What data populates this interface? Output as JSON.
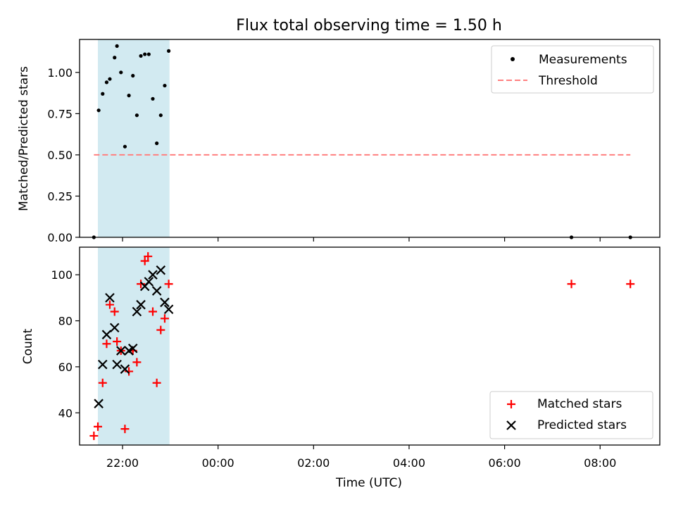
{
  "chart_data": [
    {
      "type": "scatter",
      "title": "Flux total observing time = 1.50 h",
      "xlabel": "",
      "ylabel": "Matched/Predicted stars",
      "xlim": [
        "21:06",
        "09:15"
      ],
      "ylim": [
        0,
        1.2
      ],
      "yticks": [
        0.0,
        0.25,
        0.5,
        0.75,
        1.0
      ],
      "ytick_labels": [
        "0.00",
        "0.25",
        "0.50",
        "0.75",
        "1.00"
      ],
      "grid": false,
      "legend": "top-right",
      "shaded_span": [
        "21:29",
        "22:59"
      ],
      "series": [
        {
          "name": "Measurements",
          "marker": "dot",
          "color": "#000000",
          "points": [
            [
              "21:24",
              0.0
            ],
            [
              "21:30",
              0.77
            ],
            [
              "21:35",
              0.87
            ],
            [
              "21:40",
              0.94
            ],
            [
              "21:44",
              0.96
            ],
            [
              "21:50",
              1.09
            ],
            [
              "21:53",
              1.16
            ],
            [
              "21:58",
              1.0
            ],
            [
              "22:03",
              0.55
            ],
            [
              "22:08",
              0.86
            ],
            [
              "22:13",
              0.98
            ],
            [
              "22:18",
              0.74
            ],
            [
              "22:23",
              1.1
            ],
            [
              "22:28",
              1.11
            ],
            [
              "22:33",
              1.11
            ],
            [
              "22:38",
              0.84
            ],
            [
              "22:43",
              0.57
            ],
            [
              "22:48",
              0.74
            ],
            [
              "22:53",
              0.92
            ],
            [
              "22:58",
              1.13
            ],
            [
              "07:24",
              0.0
            ],
            [
              "08:38",
              0.0
            ]
          ]
        },
        {
          "name": "Threshold",
          "line_style": "dashed",
          "color": "#ff7f7f",
          "points": [
            [
              "21:24",
              0.5
            ],
            [
              "08:38",
              0.5
            ]
          ]
        }
      ]
    },
    {
      "type": "scatter",
      "title": "",
      "xlabel": "Time (UTC)",
      "ylabel": "Count",
      "xlim": [
        "21:06",
        "09:15"
      ],
      "ylim": [
        26,
        112
      ],
      "yticks": [
        40,
        60,
        80,
        100
      ],
      "xticks": [
        "22:00",
        "00:00",
        "02:00",
        "04:00",
        "06:00",
        "08:00"
      ],
      "grid": false,
      "legend": "bottom-right",
      "shaded_span": [
        "21:29",
        "22:59"
      ],
      "series": [
        {
          "name": "Matched stars",
          "marker": "plus",
          "color": "#ff0000",
          "points": [
            [
              "21:24",
              30
            ],
            [
              "21:29",
              34
            ],
            [
              "21:35",
              53
            ],
            [
              "21:40",
              70
            ],
            [
              "21:44",
              87
            ],
            [
              "21:50",
              84
            ],
            [
              "21:53",
              71
            ],
            [
              "21:58",
              67
            ],
            [
              "22:03",
              33
            ],
            [
              "22:08",
              58
            ],
            [
              "22:13",
              67
            ],
            [
              "22:18",
              62
            ],
            [
              "22:23",
              96
            ],
            [
              "22:28",
              106
            ],
            [
              "22:32",
              108
            ],
            [
              "22:38",
              84
            ],
            [
              "22:43",
              53
            ],
            [
              "22:48",
              76
            ],
            [
              "22:53",
              81
            ],
            [
              "22:58",
              96
            ],
            [
              "07:24",
              96
            ],
            [
              "08:38",
              96
            ]
          ]
        },
        {
          "name": "Predicted stars",
          "marker": "x",
          "color": "#000000",
          "points": [
            [
              "21:30",
              44
            ],
            [
              "21:35",
              61
            ],
            [
              "21:40",
              74
            ],
            [
              "21:44",
              90
            ],
            [
              "21:50",
              77
            ],
            [
              "21:53",
              61
            ],
            [
              "21:58",
              67
            ],
            [
              "22:03",
              59
            ],
            [
              "22:08",
              67
            ],
            [
              "22:13",
              68
            ],
            [
              "22:18",
              84
            ],
            [
              "22:23",
              87
            ],
            [
              "22:28",
              95
            ],
            [
              "22:33",
              97
            ],
            [
              "22:38",
              100
            ],
            [
              "22:43",
              93
            ],
            [
              "22:48",
              102
            ],
            [
              "22:53",
              88
            ],
            [
              "22:58",
              85
            ]
          ]
        }
      ]
    }
  ],
  "colors": {
    "shaded_span": "#add8e6",
    "matched": "#ff0000",
    "predicted": "#000000",
    "measurements": "#000000",
    "threshold": "#ff7f7f"
  }
}
